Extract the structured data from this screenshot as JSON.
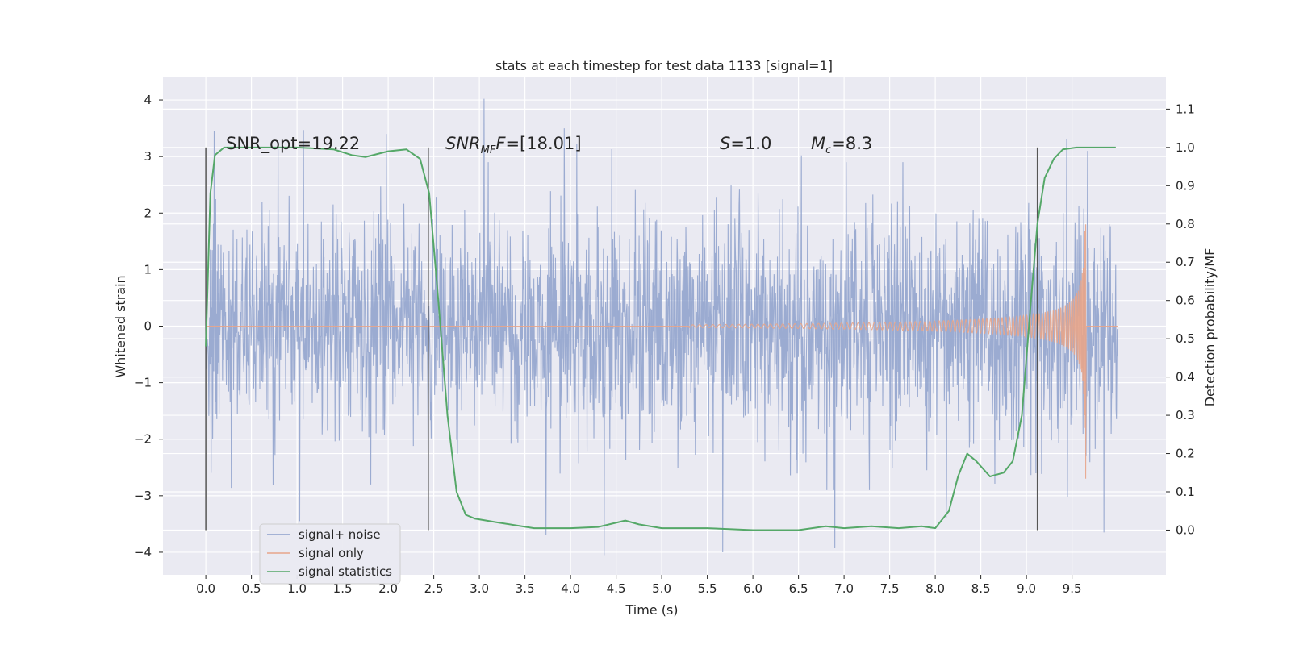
{
  "chart_data": {
    "type": "line",
    "title": "stats at each timestep for test data 1133 [signal=1]",
    "xlabel": "Time (s)",
    "ylabel": "Whitened strain",
    "y2label": "Detection probability/MF",
    "xlim": [
      -0.47,
      10.53
    ],
    "ylim": [
      -4.4,
      4.4
    ],
    "y2lim": [
      -0.117,
      1.183
    ],
    "x_ticks": [
      "0.0",
      "0.5",
      "1.0",
      "1.5",
      "2.0",
      "2.5",
      "3.0",
      "3.5",
      "4.0",
      "4.5",
      "5.0",
      "5.5",
      "6.0",
      "6.5",
      "7.0",
      "7.5",
      "8.0",
      "8.5",
      "9.0",
      "9.5"
    ],
    "y_ticks": [
      "4",
      "3",
      "2",
      "1",
      "0",
      "−1",
      "−2",
      "−3",
      "−4"
    ],
    "y2_ticks": [
      "1.1",
      "1.0",
      "0.9",
      "0.8",
      "0.7",
      "0.6",
      "0.5",
      "0.4",
      "0.3",
      "0.2",
      "0.1",
      "0.0"
    ],
    "grid": true,
    "legend_position": "lower-left",
    "annotations": {
      "snr_opt": "SNR_opt=19.22",
      "snr_mf_label": "SNR",
      "snr_mf_sub": "MF",
      "snr_mf_value": "=[18.01]",
      "s_label": "S",
      "s_value": "=1.0",
      "mc_label": "M",
      "mc_sub": "c",
      "mc_value": "=8.3"
    },
    "vertical_markers": [
      0.0,
      2.44,
      9.12
    ],
    "series": [
      {
        "name": "signal+ noise",
        "color": "#8da0cb",
        "axis": "left",
        "x_range": [
          0.0,
          10.0
        ],
        "envelope_peaks": [
          [
            0.09,
            3.45
          ],
          [
            0.79,
            3.2
          ],
          [
            1.07,
            3.47
          ],
          [
            1.98,
            3.4
          ],
          [
            3.05,
            4.02
          ],
          [
            3.93,
            3.5
          ],
          [
            4.07,
            3.22
          ],
          [
            4.45,
            3.13
          ],
          [
            6.53,
            3.02
          ],
          [
            9.44,
            3.31
          ],
          [
            9.67,
            3.1
          ],
          [
            1.03,
            -3.45
          ],
          [
            1.81,
            -2.8
          ],
          [
            3.73,
            -3.7
          ],
          [
            4.37,
            -4.05
          ],
          [
            5.67,
            -4.0
          ],
          [
            6.9,
            -3.93
          ],
          [
            8.12,
            -3.4
          ],
          [
            9.45,
            -3.02
          ],
          [
            9.85,
            -3.65
          ]
        ]
      },
      {
        "name": "signal only",
        "color": "#e8a58a",
        "axis": "left",
        "chirp_start": 5.3,
        "chirp_end": 9.65,
        "peak_amplitude": 1.8,
        "min_value": -2.7
      },
      {
        "name": "signal statistics",
        "color": "#55a868",
        "axis": "right",
        "x": [
          0.0,
          0.05,
          0.1,
          0.2,
          0.5,
          1.0,
          1.4,
          1.6,
          1.75,
          2.0,
          2.2,
          2.35,
          2.45,
          2.55,
          2.65,
          2.75,
          2.85,
          2.95,
          3.2,
          3.6,
          4.0,
          4.3,
          4.6,
          4.75,
          5.0,
          5.5,
          6.0,
          6.5,
          6.8,
          7.0,
          7.3,
          7.6,
          7.85,
          8.0,
          8.15,
          8.25,
          8.35,
          8.45,
          8.6,
          8.75,
          8.85,
          8.95,
          9.05,
          9.12,
          9.2,
          9.3,
          9.4,
          9.55,
          9.7,
          9.98
        ],
        "y": [
          0.48,
          0.88,
          0.98,
          1.0,
          1.0,
          1.0,
          0.995,
          0.98,
          0.975,
          0.99,
          0.995,
          0.97,
          0.88,
          0.6,
          0.3,
          0.1,
          0.04,
          0.03,
          0.02,
          0.005,
          0.005,
          0.008,
          0.025,
          0.015,
          0.005,
          0.005,
          0.0,
          0.0,
          0.01,
          0.005,
          0.01,
          0.005,
          0.01,
          0.005,
          0.05,
          0.14,
          0.2,
          0.18,
          0.14,
          0.15,
          0.18,
          0.3,
          0.6,
          0.8,
          0.92,
          0.97,
          0.995,
          1.0,
          1.0,
          1.0
        ]
      }
    ]
  }
}
